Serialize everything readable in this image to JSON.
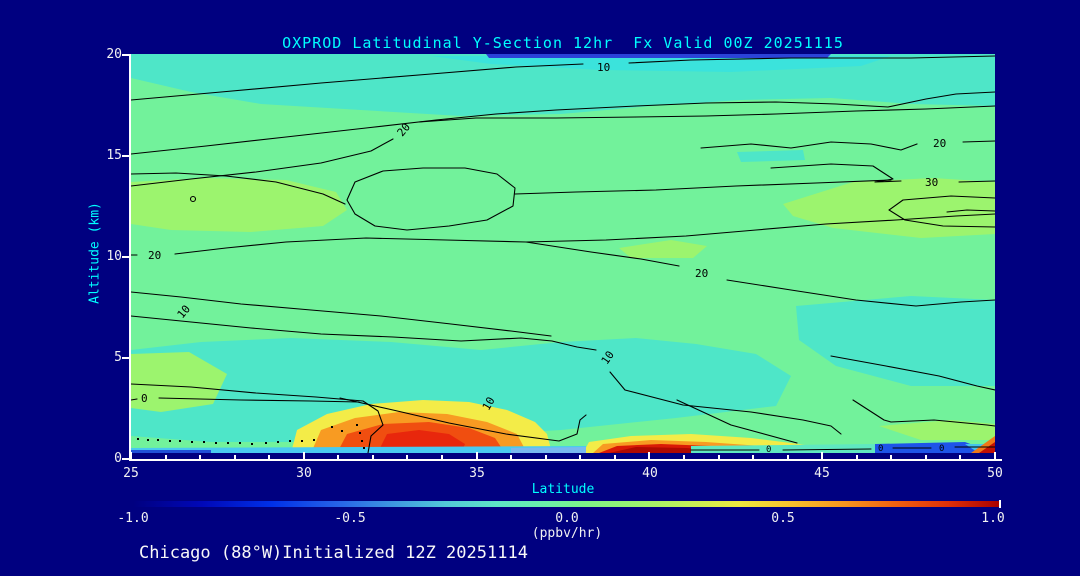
{
  "title": "OXPROD Latitudinal Y-Section 12hr  Fx Valid 00Z 20251115",
  "footer": "Chicago (88°W)Initialized 12Z 20251114",
  "y_axis": {
    "label": "Altitude (km)",
    "ticks": [
      "20",
      "15",
      "10",
      "5",
      "0"
    ]
  },
  "x_axis": {
    "label": "Latitude",
    "ticks": [
      "25",
      "30",
      "35",
      "40",
      "45",
      "50"
    ]
  },
  "colorbar": {
    "ticks": [
      "-1.0",
      "-0.5",
      "0.0",
      "0.5",
      "1.0"
    ],
    "units": "(ppbv/hr)"
  },
  "plot": {
    "labels": [
      "10",
      "20",
      "20",
      "30",
      "20",
      "10",
      "0",
      "20",
      "10",
      "10",
      "0",
      "0",
      "0"
    ]
  },
  "colors": {
    "background": "#000080",
    "title_text": "#00ffff",
    "axis_text": "#00ffff",
    "tick_text": "#f2f2f2",
    "contour_line": "#000000",
    "fill_base_green": "#72f29b",
    "fill_teal": "#4ee6c8",
    "fill_yellow_green": "#9cf46e",
    "fill_yellow": "#f3ec48",
    "fill_orange": "#f89b22",
    "fill_red": "#e8270c",
    "fill_dark_red": "#ae0a02",
    "fill_surface_cyan": "#49caf0",
    "fill_surface_blue": "#1e54e8"
  },
  "chart_data": {
    "type": "heatmap",
    "subtype": "filled-contour-cross-section",
    "title": "OXPROD Latitudinal Y-Section 12hr  Fx Valid 00Z 20251115",
    "xlabel": "Latitude",
    "ylabel": "Altitude (km)",
    "xlim": [
      25,
      50
    ],
    "ylim": [
      0,
      20
    ],
    "x_major_ticks": [
      25,
      30,
      35,
      40,
      45,
      50
    ],
    "x_minor_tick_step": 1,
    "y_major_ticks": [
      0,
      5,
      10,
      15,
      20
    ],
    "fill_value_range": [
      -1.0,
      1.0
    ],
    "fill_units": "ppbv/hr",
    "colorbar_ticks": [
      -1.0,
      -0.5,
      0.0,
      0.5,
      1.0
    ],
    "overlay_contour_levels_labeled": [
      0,
      10,
      20,
      30
    ],
    "legend_position": "bottom-colorbar",
    "grid": false,
    "features": [
      {
        "name": "background-field",
        "value_est": 0.05,
        "extent": "most of domain, pale green"
      },
      {
        "name": "surface-hotspot-primary",
        "lat": [
          30.5,
          37
        ],
        "alt_km": [
          0,
          2.5
        ],
        "peak_value_est": 0.85,
        "peak_lat": 32.5
      },
      {
        "name": "surface-hotspot-secondary",
        "lat": [
          37.5,
          45
        ],
        "alt_km": [
          0,
          0.8
        ],
        "peak_value_est": 1.0,
        "peak_lat": 39.5
      },
      {
        "name": "surface-hotspot-corner",
        "lat": [
          49.3,
          50
        ],
        "alt_km": [
          0,
          0.8
        ],
        "peak_value_est": 0.9
      },
      {
        "name": "surface-negative-patch",
        "lat": [
          46.5,
          49
        ],
        "alt_km": [
          0,
          0.4
        ],
        "peak_value_est": -0.7
      },
      {
        "name": "surface-cyan-layer",
        "lat": [
          25,
          34.5
        ],
        "alt_km": [
          0,
          0.3
        ],
        "value_est": -0.3
      },
      {
        "name": "upper-negative-band",
        "lat": [
          25,
          50
        ],
        "alt_km": [
          17,
          20
        ],
        "value_est": -0.1
      },
      {
        "name": "mid-level-closed-contour",
        "lat": [
          31,
          36
        ],
        "alt_km": [
          11,
          14.5
        ],
        "contour_level": 30
      },
      {
        "name": "dotted-negative-contour",
        "lat": [
          25,
          28.5
        ],
        "alt_km": [
          0.5,
          1.0
        ],
        "contour_level": 0,
        "style": "dotted"
      }
    ]
  }
}
